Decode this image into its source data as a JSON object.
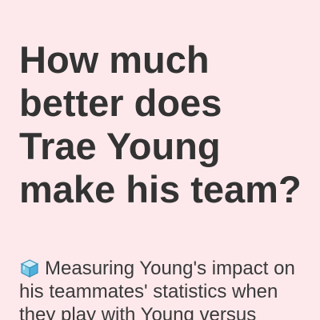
{
  "article": {
    "headline": "How much better does Trae Young make his team?",
    "dek_icon": "ice-cube-icon",
    "dek": "Measuring Young's impact on his teammates' statistics when they play with Young versus"
  }
}
